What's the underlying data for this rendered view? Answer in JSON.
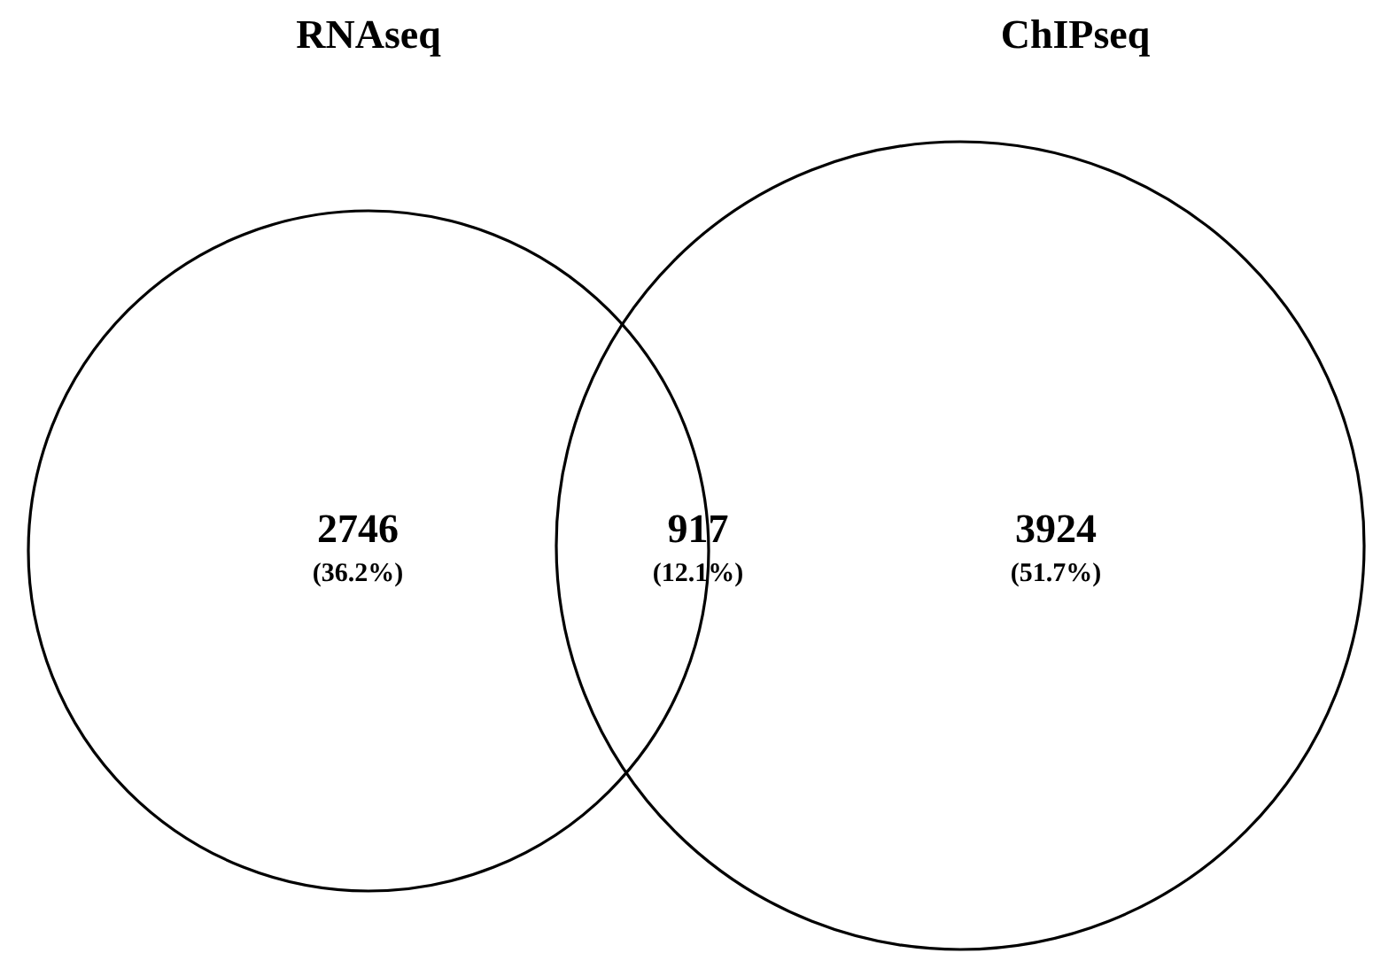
{
  "chart_data": {
    "type": "other",
    "categories": [
      null,
      null,
      null
    ],
    "values": [
      2746,
      917,
      3924
    ],
    "data_labels": true,
    "annotations": [
      "RNAseq",
      "ChIPseq",
      "(36.2%)",
      "(12.1%)",
      "(51.7%)"
    ]
  }
}
